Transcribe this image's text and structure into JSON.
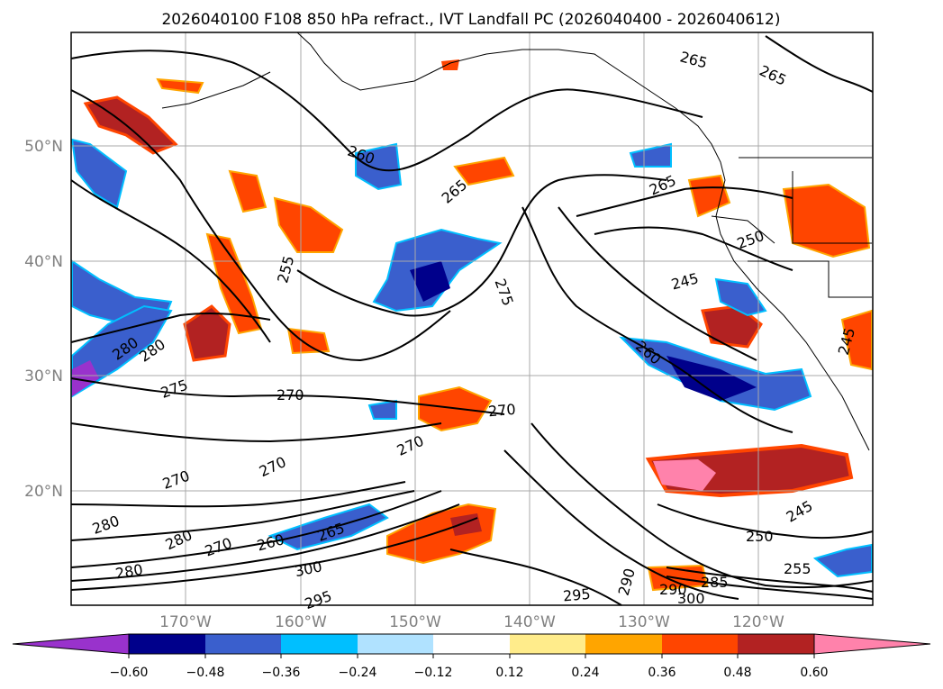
{
  "title": "2026040100 F108 850 hPa refract., IVT Landfall PC (2026040400 - 2026040612)",
  "lat_labels": [
    "50°N",
    "40°N",
    "30°N",
    "20°N"
  ],
  "lon_labels": [
    "170°W",
    "160°W",
    "150°W",
    "140°W",
    "130°W",
    "120°W"
  ],
  "contour_labels": [
    "265",
    "265",
    "260",
    "265",
    "265",
    "255",
    "250",
    "245",
    "275",
    "260",
    "280",
    "280",
    "275",
    "270",
    "270",
    "270",
    "270",
    "270",
    "280",
    "280",
    "270",
    "260",
    "265",
    "280",
    "300",
    "295",
    "290",
    "290",
    "285",
    "300",
    "250",
    "245",
    "255",
    "245",
    "295"
  ],
  "colorbar": {
    "colors": [
      "#9932cc",
      "#00008b",
      "#3a5fcd",
      "#00bfff",
      "#b0e2ff",
      "#ffffff",
      "#ffec8b",
      "#ffa500",
      "#ff4500",
      "#b22222",
      "#ff82ab"
    ],
    "tick_labels": [
      "−0.60",
      "−0.48",
      "−0.36",
      "−0.24",
      "−0.12",
      "0.12",
      "0.24",
      "0.36",
      "0.48",
      "0.60"
    ]
  }
}
